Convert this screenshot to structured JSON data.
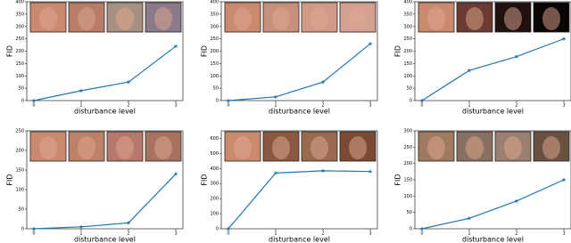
{
  "chart_data": [
    {
      "type": "line",
      "xlabel": "disturbance level",
      "ylabel": "FID",
      "x": [
        0,
        1,
        2,
        3
      ],
      "values": [
        0,
        40,
        75,
        220
      ],
      "color": "#1f77b4",
      "marker": "star",
      "xlim": [
        -0.15,
        3.15
      ],
      "ylim": [
        0,
        400
      ],
      "xticks": [
        0,
        1,
        2,
        3
      ],
      "yticks": [
        0,
        50,
        100,
        150,
        200,
        250,
        300,
        350,
        400
      ]
    },
    {
      "type": "line",
      "xlabel": "disturbance level",
      "ylabel": "FID",
      "x": [
        0,
        1,
        2,
        3
      ],
      "values": [
        0,
        15,
        75,
        230
      ],
      "color": "#1f77b4",
      "marker": "star",
      "xlim": [
        -0.15,
        3.15
      ],
      "ylim": [
        0,
        400
      ],
      "xticks": [
        0,
        1,
        2,
        3
      ],
      "yticks": [
        0,
        50,
        100,
        150,
        200,
        250,
        300,
        350,
        400
      ]
    },
    {
      "type": "line",
      "xlabel": "disturbance level",
      "ylabel": "FID",
      "x": [
        0,
        1,
        2,
        3
      ],
      "values": [
        0,
        122,
        178,
        250
      ],
      "color": "#1f77b4",
      "marker": "star",
      "xlim": [
        -0.15,
        3.15
      ],
      "ylim": [
        0,
        400
      ],
      "xticks": [
        0,
        1,
        2,
        3
      ],
      "yticks": [
        0,
        50,
        100,
        150,
        200,
        250,
        300,
        350,
        400
      ]
    },
    {
      "type": "line",
      "xlabel": "disturbance level",
      "ylabel": "FID",
      "x": [
        0,
        1,
        2,
        3
      ],
      "values": [
        0,
        5,
        15,
        140
      ],
      "color": "#1f77b4",
      "marker": "star",
      "xlim": [
        -0.15,
        3.15
      ],
      "ylim": [
        0,
        250
      ],
      "xticks": [
        0,
        1,
        2,
        3
      ],
      "yticks": [
        0,
        50,
        100,
        150,
        200,
        250
      ]
    },
    {
      "type": "line",
      "xlabel": "disturbance level",
      "ylabel": "FID",
      "x": [
        0,
        1,
        2,
        3
      ],
      "values": [
        0,
        370,
        385,
        380
      ],
      "color": "#1f77b4",
      "marker": "star",
      "xlim": [
        -0.15,
        3.15
      ],
      "ylim": [
        0,
        650
      ],
      "xticks": [
        0,
        1,
        2,
        3
      ],
      "yticks": [
        0,
        100,
        200,
        300,
        400,
        500,
        600
      ]
    },
    {
      "type": "line",
      "xlabel": "disturbance level",
      "ylabel": "FID",
      "x": [
        0,
        1,
        2,
        3
      ],
      "values": [
        0,
        32,
        85,
        150
      ],
      "color": "#1f77b4",
      "marker": "star",
      "xlim": [
        -0.15,
        3.15
      ],
      "ylim": [
        0,
        300
      ],
      "xticks": [
        0,
        1,
        2,
        3
      ],
      "yticks": [
        0,
        50,
        100,
        150,
        200,
        250,
        300
      ]
    }
  ]
}
